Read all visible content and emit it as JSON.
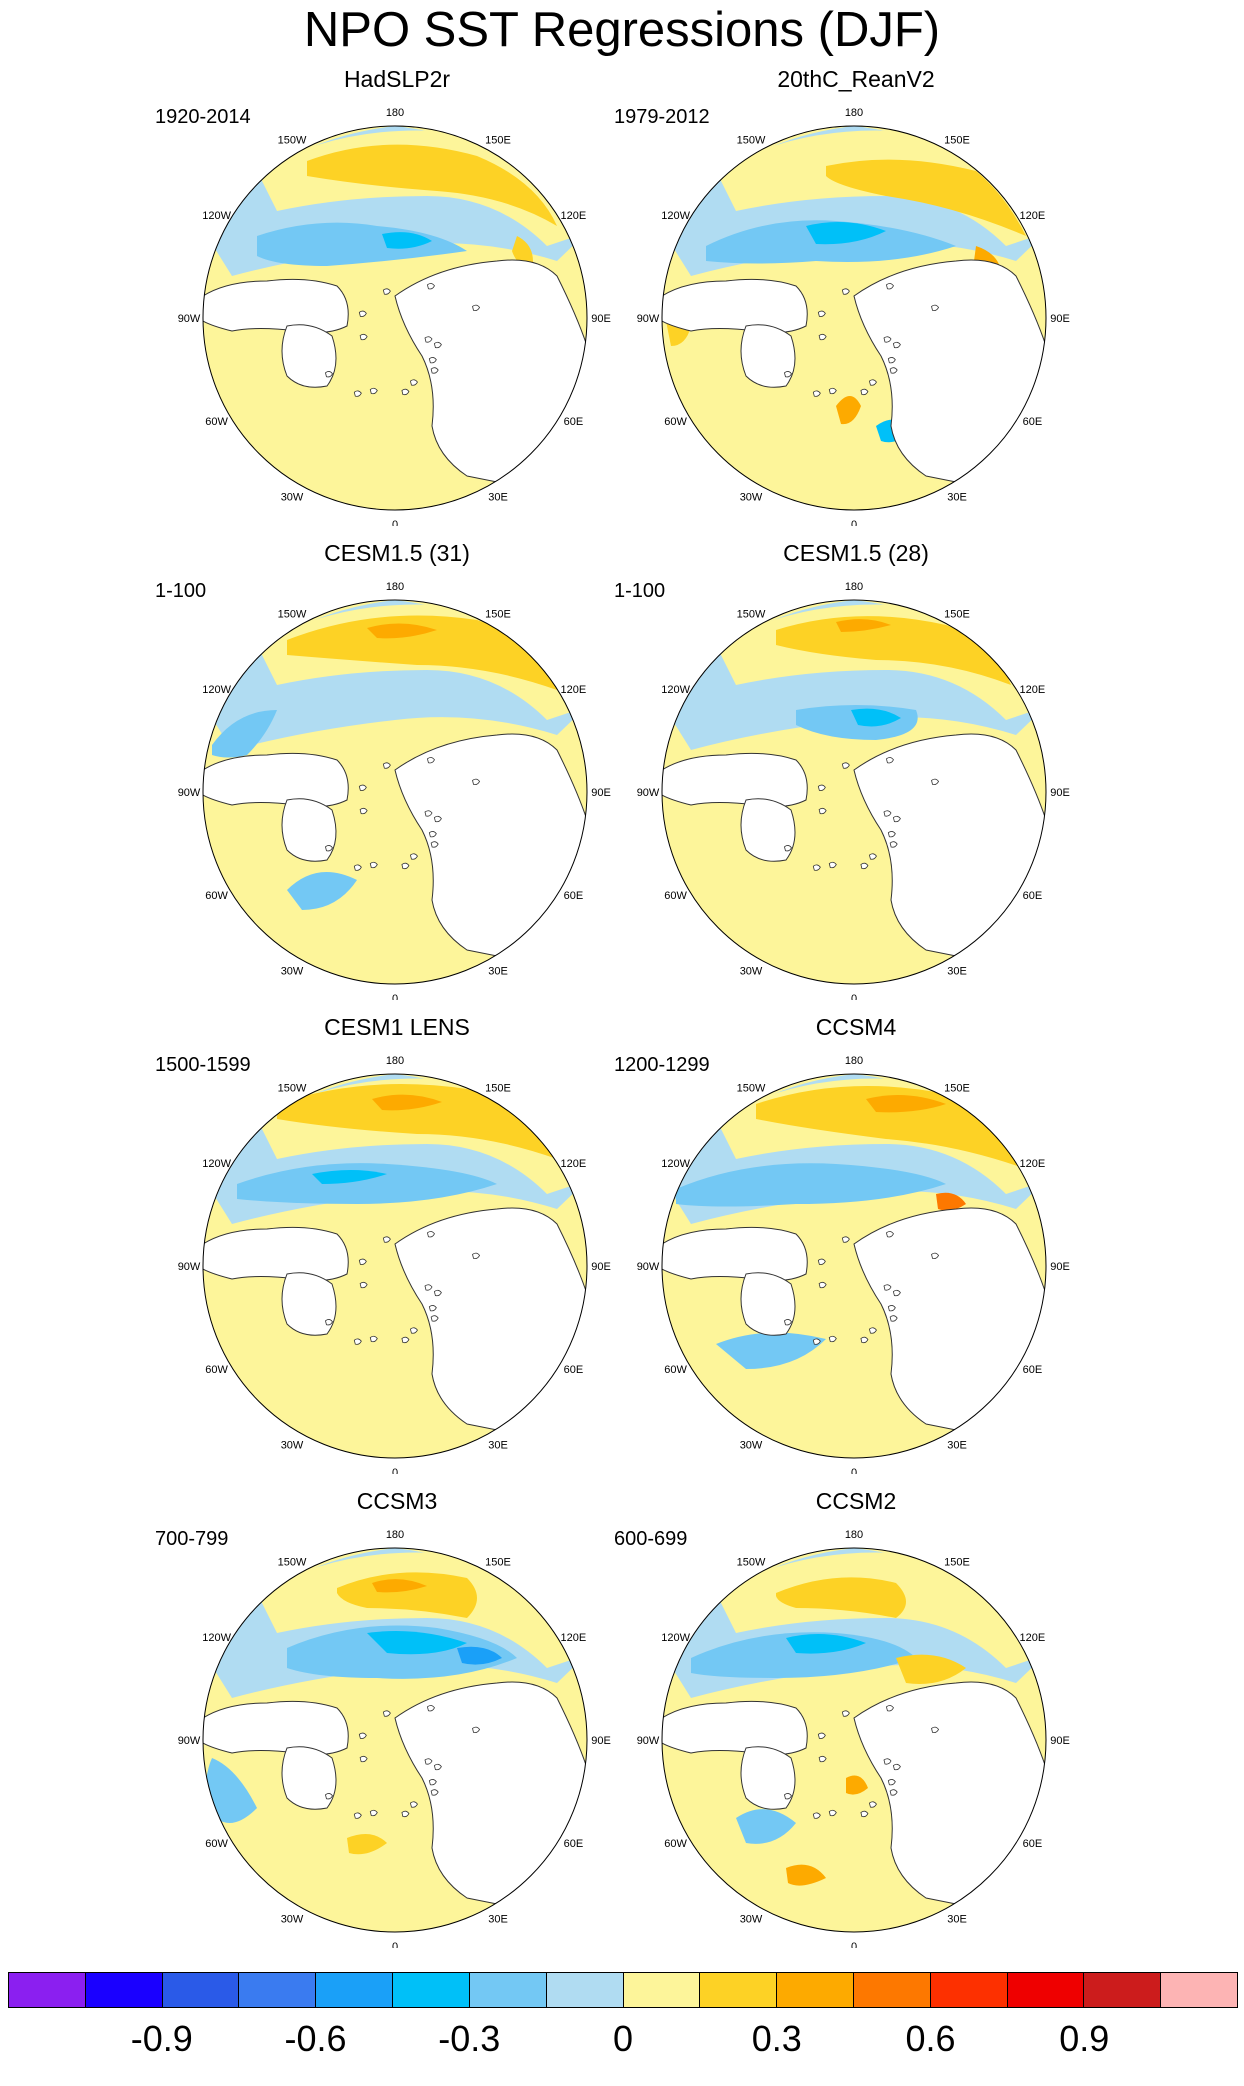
{
  "title": "NPO SST Regressions (DJF)",
  "colors": {
    "ocean_neutral_pos": "#fdf59a",
    "ocean_neutral_neg": "#b0dcf2",
    "land": "#ffffff",
    "coast": "#333333"
  },
  "lon_labels": [
    "180",
    "150E",
    "120E",
    "90E",
    "60E",
    "30E",
    "0",
    "30W",
    "60W",
    "90W",
    "120W",
    "150W"
  ],
  "panels": [
    {
      "title": "HadSLP2r",
      "period": "1920-2014",
      "pattern": "hadslp"
    },
    {
      "title": "20thC_ReanV2",
      "period": "1979-2012",
      "pattern": "rean"
    },
    {
      "title": "CESM1.5 (31)",
      "period": "1-100",
      "pattern": "c15a"
    },
    {
      "title": "CESM1.5 (28)",
      "period": "1-100",
      "pattern": "c15b"
    },
    {
      "title": "CESM1 LENS",
      "period": "1500-1599",
      "pattern": "lens"
    },
    {
      "title": "CCSM4",
      "period": "1200-1299",
      "pattern": "ccsm4"
    },
    {
      "title": "CCSM3",
      "period": "700-799",
      "pattern": "ccsm3"
    },
    {
      "title": "CCSM2",
      "period": "600-699",
      "pattern": "ccsm2"
    }
  ],
  "colorbar": {
    "colors": [
      "#8b1ff0",
      "#1a00ff",
      "#2a5ae8",
      "#3a7bf0",
      "#1aa0f8",
      "#00c0f8",
      "#73c8f4",
      "#b0dcf2",
      "#fdf59a",
      "#fdd225",
      "#fdaa00",
      "#fd7800",
      "#fd3000",
      "#ef0000",
      "#cc1c1c",
      "#fdb4b4"
    ],
    "tick_labels": [
      "-0.9",
      "-0.6",
      "-0.3",
      "0",
      "0.3",
      "0.6",
      "0.9"
    ]
  }
}
